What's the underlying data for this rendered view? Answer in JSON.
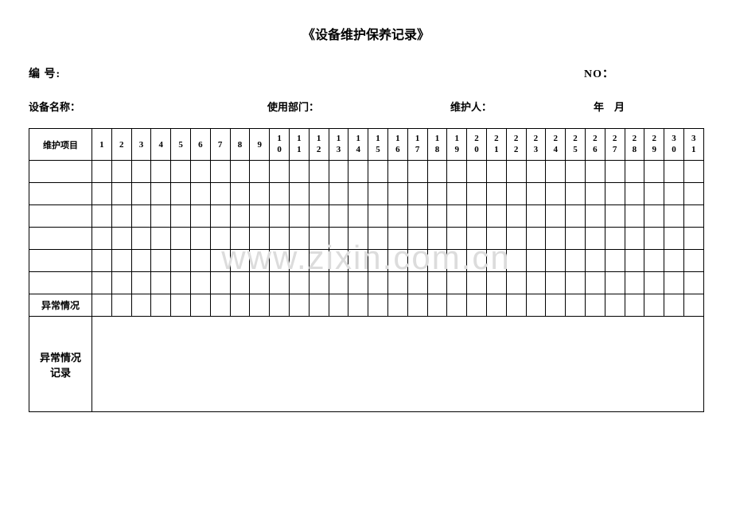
{
  "title": "《设备维护保养记录》",
  "meta": {
    "serial_label": "编  号:",
    "no_label": "NO：",
    "device_name_label": "设备名称：",
    "department_label": "使用部门：",
    "maintainer_label": "维护人：",
    "year_month_label": "年　月"
  },
  "table": {
    "first_header": "维护项目",
    "days": [
      "1",
      "2",
      "3",
      "4",
      "5",
      "6",
      "7",
      "8",
      "9",
      "10",
      "11",
      "12",
      "13",
      "14",
      "15",
      "16",
      "17",
      "18",
      "19",
      "20",
      "21",
      "22",
      "23",
      "24",
      "25",
      "26",
      "27",
      "28",
      "29",
      "30",
      "31"
    ],
    "abnormal_label": "异常情况",
    "record_label": "异常情况记录",
    "blank_row_count": 6
  },
  "watermark": "www.zixin.com.cn",
  "style": {
    "border_color": "#000000",
    "background_color": "#ffffff",
    "watermark_color": "#dcdcdc",
    "title_fontsize": 16,
    "meta_fontsize": 14,
    "cell_fontsize": 11
  }
}
